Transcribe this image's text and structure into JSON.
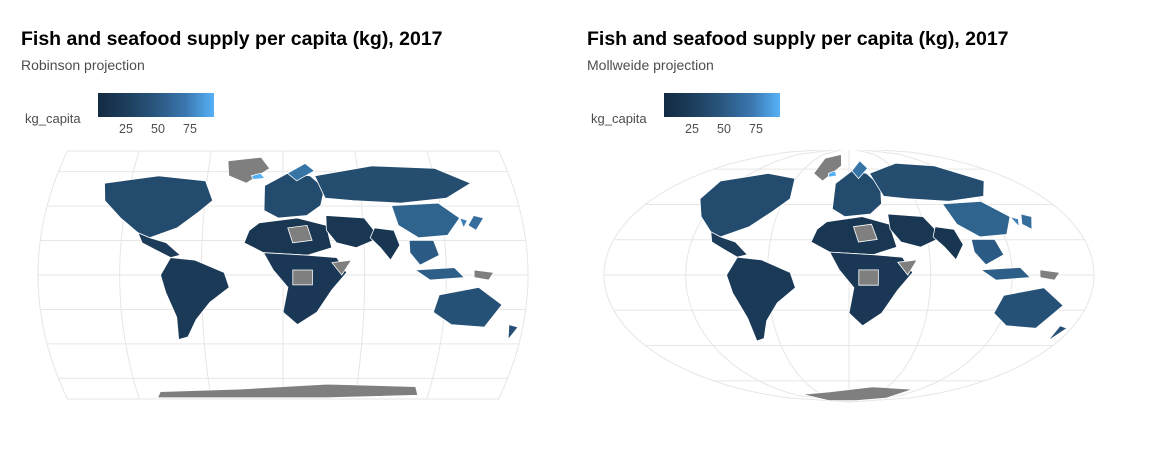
{
  "maps": [
    {
      "title": "Fish and seafood supply per capita (kg), 2017",
      "subtitle": "Robinson projection",
      "projection": "robinson"
    },
    {
      "title": "Fish and seafood supply per capita (kg), 2017",
      "subtitle": "Mollweide projection",
      "projection": "mollweide"
    }
  ],
  "legend": {
    "title": "kg_capita",
    "breaks": [
      "25",
      "50",
      "75"
    ],
    "break_values": [
      25,
      50,
      75
    ],
    "range": [
      0,
      92
    ],
    "low_color": "#132B43",
    "high_color": "#56B1F7",
    "na_color": "#7F7F7F"
  },
  "regions": [
    {
      "name": "North America",
      "kg_capita": 22
    },
    {
      "name": "Greenland",
      "kg_capita": null
    },
    {
      "name": "Central America",
      "kg_capita": 12
    },
    {
      "name": "South America",
      "kg_capita": 10
    },
    {
      "name": "Europe",
      "kg_capita": 22
    },
    {
      "name": "Russia",
      "kg_capita": 23
    },
    {
      "name": "North Africa",
      "kg_capita": 8
    },
    {
      "name": "Libya",
      "kg_capita": null
    },
    {
      "name": "Sub-Saharan Africa",
      "kg_capita": 9
    },
    {
      "name": "Somalia",
      "kg_capita": null
    },
    {
      "name": "DR Congo",
      "kg_capita": null
    },
    {
      "name": "Middle East",
      "kg_capita": 8
    },
    {
      "name": "India",
      "kg_capita": 7
    },
    {
      "name": "China",
      "kg_capita": 39
    },
    {
      "name": "Southeast Asia",
      "kg_capita": 33
    },
    {
      "name": "Japan",
      "kg_capita": 46
    },
    {
      "name": "Korea",
      "kg_capita": 58
    },
    {
      "name": "Indonesia",
      "kg_capita": 36
    },
    {
      "name": "Papua New Guinea",
      "kg_capita": null
    },
    {
      "name": "Australia",
      "kg_capita": 26
    },
    {
      "name": "New Zealand",
      "kg_capita": 25
    },
    {
      "name": "Iceland",
      "kg_capita": 91
    },
    {
      "name": "Norway",
      "kg_capita": 51
    },
    {
      "name": "Antarctica",
      "kg_capita": null
    }
  ]
}
